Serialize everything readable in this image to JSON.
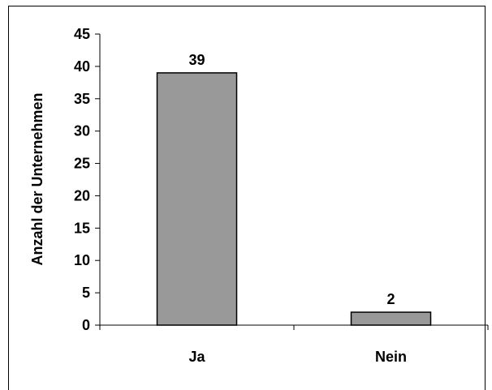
{
  "chart_data": {
    "type": "bar",
    "categories": [
      "Ja",
      "Nein"
    ],
    "values": [
      39,
      2
    ],
    "data_labels": [
      "39",
      "2"
    ],
    "title": "",
    "xlabel": "",
    "ylabel": "Anzahl der Unternehmen",
    "ylim": [
      0,
      45
    ],
    "yticks": [
      0,
      5,
      10,
      15,
      20,
      25,
      30,
      35,
      40,
      45
    ],
    "ytick_labels": [
      "0",
      "5",
      "10",
      "15",
      "20",
      "25",
      "30",
      "35",
      "40",
      "45"
    ],
    "grid": false,
    "legend": "none",
    "bar_color": "#999999",
    "bar_border_color": "#000000"
  }
}
